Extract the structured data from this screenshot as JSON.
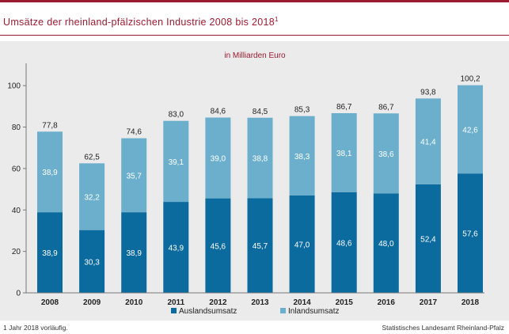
{
  "title_main": "Umsätze der rheinland-pfälzischen Industrie 2008 bis 2018",
  "title_sup": "1",
  "footnote": "1 Jahr 2018 vorläufig.",
  "source": "Statistisches Landesamt Rheinland-Pfalz",
  "colors": {
    "accent": "#9b1b30",
    "auslandsumsatz": "#0b6a9e",
    "inlandsumsatz": "#6bafcc"
  },
  "chart_data": {
    "type": "bar",
    "stacked": true,
    "title": "Umsätze der rheinland-pfälzischen Industrie 2008 bis 2018",
    "subtitle": "in Milliarden Euro",
    "categories": [
      "2008",
      "2009",
      "2010",
      "2011",
      "2012",
      "2013",
      "2014",
      "2015",
      "2016",
      "2017",
      "2018"
    ],
    "series": [
      {
        "name": "Auslandsumsatz",
        "values": [
          38.9,
          30.3,
          38.9,
          43.9,
          45.6,
          45.7,
          47.0,
          48.6,
          48.0,
          52.4,
          57.6
        ],
        "labels": [
          "38,9",
          "30,3",
          "38,9",
          "43,9",
          "45,6",
          "45,7",
          "47,0",
          "48,6",
          "48,0",
          "52,4",
          "57,6"
        ]
      },
      {
        "name": "Inlandsumsatz",
        "values": [
          38.9,
          32.2,
          35.7,
          39.1,
          39.0,
          38.8,
          38.3,
          38.1,
          38.6,
          41.4,
          42.6
        ],
        "labels": [
          "38,9",
          "32,2",
          "35,7",
          "39,1",
          "39,0",
          "38,8",
          "38,3",
          "38,1",
          "38,6",
          "41,4",
          "42,6"
        ]
      }
    ],
    "totals": [
      77.8,
      62.5,
      74.6,
      83.0,
      84.6,
      84.5,
      85.3,
      86.7,
      86.7,
      93.8,
      100.2
    ],
    "total_labels": [
      "77,8",
      "62,5",
      "74,6",
      "83,0",
      "84,6",
      "84,5",
      "85,3",
      "86,7",
      "86,7",
      "93,8",
      "100,2"
    ],
    "ylim": [
      0,
      110
    ],
    "yticks": [
      0,
      20,
      40,
      60,
      80,
      100
    ],
    "ytick_labels": [
      "0",
      "20",
      "40",
      "60",
      "80",
      "100"
    ],
    "grid": false,
    "legend": "bottom"
  }
}
